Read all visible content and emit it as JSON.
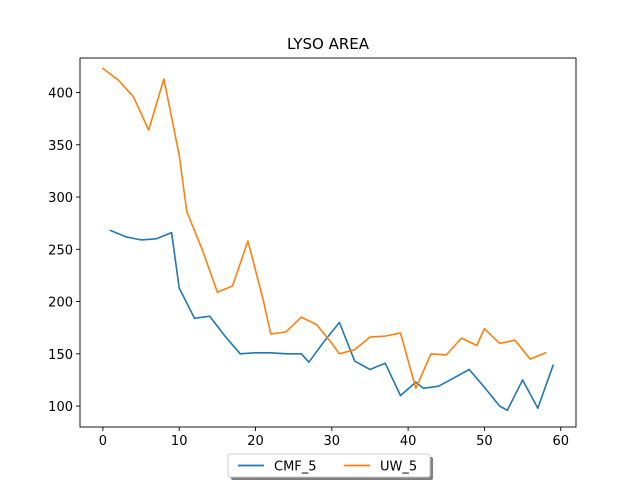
{
  "chart_data": {
    "type": "line",
    "title": "LYSO AREA",
    "xlabel": "",
    "ylabel": "",
    "xlim": [
      -3,
      62
    ],
    "ylim": [
      80,
      433
    ],
    "xticks": [
      0,
      10,
      20,
      30,
      40,
      50,
      60
    ],
    "yticks": [
      100,
      150,
      200,
      250,
      300,
      350,
      400
    ],
    "grid": false,
    "legend_position": "bottom-center",
    "series": [
      {
        "name": "CMF_5",
        "color": "#1f77b4",
        "x": [
          1,
          3,
          5,
          7,
          9,
          10,
          12,
          14,
          16,
          18,
          20,
          22,
          24,
          26,
          27,
          29,
          31,
          33,
          35,
          37,
          39,
          41,
          42,
          44,
          46,
          48,
          50,
          52,
          53,
          55,
          57,
          59
        ],
        "y": [
          268,
          262,
          259,
          260,
          266,
          213,
          184,
          186,
          167,
          150,
          151,
          151,
          150,
          150,
          142,
          162,
          180,
          143,
          135,
          141,
          110,
          123,
          117,
          119,
          127,
          135,
          118,
          100,
          96,
          125,
          98,
          139
        ]
      },
      {
        "name": "UW_5",
        "color": "#ff7f0e",
        "x": [
          0,
          2,
          4,
          6,
          8,
          10,
          11,
          13,
          15,
          17,
          19,
          21,
          22,
          24,
          26,
          28,
          30,
          31,
          33,
          35,
          37,
          39,
          41,
          43,
          45,
          47,
          49,
          50,
          52,
          54,
          56,
          58
        ],
        "y": [
          423,
          412,
          396,
          364,
          413,
          340,
          286,
          250,
          209,
          215,
          258,
          202,
          169,
          171,
          185,
          178,
          160,
          150,
          154,
          166,
          167,
          170,
          117,
          150,
          149,
          165,
          158,
          174,
          160,
          163,
          145,
          151
        ]
      }
    ]
  }
}
